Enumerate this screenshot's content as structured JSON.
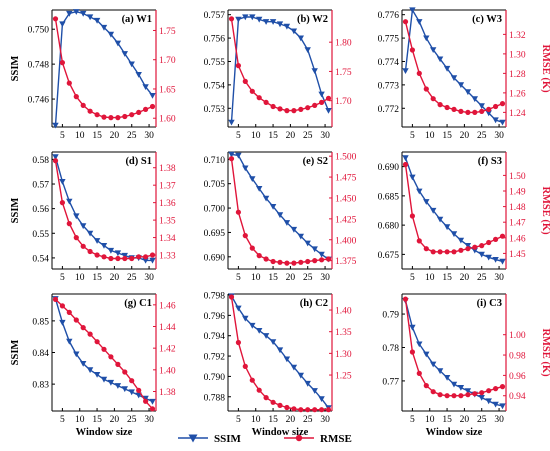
{
  "colors": {
    "ssim": "#1f4fa8",
    "rmse": "#e0153a",
    "axis": "#000000"
  },
  "legend": {
    "placement": "bottom-center",
    "ssim_label": "SSIM",
    "rmse_label": "RMSE"
  },
  "chart_data": [
    {
      "type": "line",
      "title": "(a) W1",
      "xlabel": "",
      "ylabel_left": "SSIM",
      "ylabel_right": "",
      "x": [
        3,
        5,
        7,
        9,
        11,
        13,
        15,
        17,
        19,
        21,
        23,
        25,
        27,
        29,
        31
      ],
      "xticks": [
        "5",
        "10",
        "15",
        "20",
        "25",
        "30"
      ],
      "xlim": [
        2,
        32
      ],
      "ylim_left": [
        0.7444,
        0.7511
      ],
      "yticks_left": [
        "0.746",
        "0.748",
        "0.750"
      ],
      "ylim_right": [
        1.585,
        1.785
      ],
      "yticks_right": [
        "1.60",
        "1.65",
        "1.70",
        "1.75"
      ],
      "series": [
        {
          "name": "SSIM",
          "axis": "left",
          "values": [
            0.7445,
            0.7503,
            0.7509,
            0.751,
            0.7509,
            0.7507,
            0.7505,
            0.7501,
            0.7497,
            0.7492,
            0.7486,
            0.748,
            0.7474,
            0.7467,
            0.7462
          ]
        },
        {
          "name": "RMSE",
          "axis": "right",
          "values": [
            1.77,
            1.695,
            1.66,
            1.637,
            1.622,
            1.612,
            1.606,
            1.602,
            1.601,
            1.601,
            1.603,
            1.606,
            1.61,
            1.615,
            1.62
          ]
        }
      ]
    },
    {
      "type": "line",
      "title": "(b) W2",
      "xlabel": "",
      "ylabel_left": "",
      "ylabel_right": "",
      "x": [
        3,
        5,
        7,
        9,
        11,
        13,
        15,
        17,
        19,
        21,
        23,
        25,
        27,
        29,
        31
      ],
      "xticks": [
        "5",
        "10",
        "15",
        "20",
        "25",
        "30"
      ],
      "xlim": [
        2,
        32
      ],
      "ylim_left": [
        0.7522,
        0.7572
      ],
      "yticks_left": [
        "0.753",
        "0.754",
        "0.755",
        "0.756",
        "0.757"
      ],
      "ylim_right": [
        1.655,
        1.855
      ],
      "yticks_right": [
        "1.70",
        "1.75",
        "1.80"
      ],
      "series": [
        {
          "name": "SSIM",
          "axis": "left",
          "values": [
            0.7524,
            0.7568,
            0.7569,
            0.7569,
            0.7568,
            0.7567,
            0.7567,
            0.7566,
            0.7565,
            0.7563,
            0.756,
            0.7555,
            0.7546,
            0.7536,
            0.7529
          ]
        },
        {
          "name": "RMSE",
          "axis": "right",
          "values": [
            1.84,
            1.76,
            1.733,
            1.716,
            1.705,
            1.697,
            1.69,
            1.686,
            1.683,
            1.683,
            1.685,
            1.688,
            1.692,
            1.697,
            1.704
          ]
        }
      ]
    },
    {
      "type": "line",
      "title": "(c) W3",
      "xlabel": "",
      "ylabel_left": "",
      "ylabel_right": "RMSE (K)",
      "x": [
        3,
        5,
        7,
        9,
        11,
        13,
        15,
        17,
        19,
        21,
        23,
        25,
        27,
        29,
        31
      ],
      "xticks": [
        "5",
        "10",
        "15",
        "20",
        "25",
        "30"
      ],
      "xlim": [
        2,
        32
      ],
      "ylim_left": [
        0.7712,
        0.7762
      ],
      "yticks_left": [
        "0.772",
        "0.773",
        "0.774",
        "0.775",
        "0.776"
      ],
      "ylim_right": [
        1.225,
        1.345
      ],
      "yticks_right": [
        "1.24",
        "1.26",
        "1.28",
        "1.30",
        "1.32"
      ],
      "series": [
        {
          "name": "SSIM",
          "axis": "left",
          "values": [
            0.7736,
            0.7762,
            0.7757,
            0.775,
            0.7745,
            0.7741,
            0.7737,
            0.7733,
            0.773,
            0.7727,
            0.7724,
            0.7721,
            0.7718,
            0.7715,
            0.7714
          ]
        },
        {
          "name": "RMSE",
          "axis": "right",
          "values": [
            1.333,
            1.304,
            1.28,
            1.264,
            1.254,
            1.248,
            1.245,
            1.243,
            1.241,
            1.24,
            1.24,
            1.241,
            1.243,
            1.246,
            1.249
          ]
        }
      ]
    },
    {
      "type": "line",
      "title": "(d) S1",
      "xlabel": "",
      "ylabel_left": "SSIM",
      "ylabel_right": "",
      "x": [
        3,
        5,
        7,
        9,
        11,
        13,
        15,
        17,
        19,
        21,
        23,
        25,
        27,
        29,
        31
      ],
      "xticks": [
        "5",
        "10",
        "15",
        "20",
        "25",
        "30"
      ],
      "xlim": [
        2,
        32
      ],
      "ylim_left": [
        0.5355,
        0.583
      ],
      "yticks_left": [
        "0.54",
        "0.55",
        "0.56",
        "0.57",
        "0.58"
      ],
      "ylim_right": [
        1.322,
        1.389
      ],
      "yticks_right": [
        "1.33",
        "1.34",
        "1.35",
        "1.36",
        "1.37",
        "1.38"
      ],
      "series": [
        {
          "name": "SSIM",
          "axis": "left",
          "values": [
            0.581,
            0.571,
            0.563,
            0.557,
            0.553,
            0.55,
            0.547,
            0.545,
            0.543,
            0.542,
            0.541,
            0.54,
            0.54,
            0.539,
            0.539
          ]
        },
        {
          "name": "RMSE",
          "axis": "right",
          "values": [
            1.384,
            1.36,
            1.348,
            1.34,
            1.335,
            1.332,
            1.33,
            1.329,
            1.328,
            1.328,
            1.328,
            1.328,
            1.329,
            1.329,
            1.33
          ]
        }
      ]
    },
    {
      "type": "line",
      "title": "(e) S2",
      "xlabel": "",
      "ylabel_left": "",
      "ylabel_right": "",
      "x": [
        3,
        5,
        7,
        9,
        11,
        13,
        15,
        17,
        19,
        21,
        23,
        25,
        27,
        29,
        31
      ],
      "xticks": [
        "5",
        "10",
        "15",
        "20",
        "25",
        "30"
      ],
      "xlim": [
        2,
        32
      ],
      "ylim_left": [
        0.6875,
        0.7115
      ],
      "yticks_left": [
        "0.690",
        "0.695",
        "0.700",
        "0.705",
        "0.710"
      ],
      "ylim_right": [
        1.365,
        1.505
      ],
      "yticks_right": [
        "1.375",
        "1.400",
        "1.425",
        "1.450",
        "1.475",
        "1.500"
      ],
      "series": [
        {
          "name": "SSIM",
          "axis": "left",
          "values": [
            0.711,
            0.7108,
            0.7082,
            0.706,
            0.704,
            0.702,
            0.7003,
            0.6986,
            0.697,
            0.6956,
            0.6942,
            0.6928,
            0.6916,
            0.6905,
            0.6895
          ]
        },
        {
          "name": "RMSE",
          "axis": "right",
          "values": [
            1.497,
            1.433,
            1.405,
            1.39,
            1.381,
            1.377,
            1.374,
            1.373,
            1.372,
            1.372,
            1.373,
            1.374,
            1.375,
            1.376,
            1.377
          ]
        }
      ]
    },
    {
      "type": "line",
      "title": "(f) S3",
      "xlabel": "",
      "ylabel_left": "",
      "ylabel_right": "RMSE (K)",
      "x": [
        3,
        5,
        7,
        9,
        11,
        13,
        15,
        17,
        19,
        21,
        23,
        25,
        27,
        29,
        31
      ],
      "xticks": [
        "5",
        "10",
        "15",
        "20",
        "25",
        "30"
      ],
      "xlim": [
        2,
        32
      ],
      "ylim_left": [
        0.6725,
        0.6925
      ],
      "yticks_left": [
        "0.675",
        "0.680",
        "0.685",
        "0.690"
      ],
      "ylim_right": [
        1.44,
        1.515
      ],
      "yticks_right": [
        "1.45",
        "1.46",
        "1.47",
        "1.48",
        "1.49",
        "1.50"
      ],
      "series": [
        {
          "name": "SSIM",
          "axis": "left",
          "values": [
            0.6915,
            0.6882,
            0.6858,
            0.684,
            0.6825,
            0.681,
            0.6797,
            0.6785,
            0.6774,
            0.6765,
            0.6757,
            0.675,
            0.6745,
            0.6741,
            0.6738
          ]
        },
        {
          "name": "RMSE",
          "axis": "right",
          "values": [
            1.507,
            1.474,
            1.458,
            1.453,
            1.451,
            1.451,
            1.451,
            1.451,
            1.452,
            1.453,
            1.454,
            1.455,
            1.457,
            1.459,
            1.461
          ]
        }
      ]
    },
    {
      "type": "line",
      "title": "(g) C1",
      "xlabel": "Window size",
      "ylabel_left": "SSIM",
      "ylabel_right": "",
      "x": [
        3,
        5,
        7,
        9,
        11,
        13,
        15,
        17,
        19,
        21,
        23,
        25,
        27,
        29,
        31
      ],
      "xticks": [
        "5",
        "10",
        "15",
        "20",
        "25",
        "30"
      ],
      "xlim": [
        2,
        32
      ],
      "ylim_left": [
        0.8215,
        0.8585
      ],
      "yticks_left": [
        "0.83",
        "0.84",
        "0.85"
      ],
      "ylim_right": [
        1.362,
        1.47
      ],
      "yticks_right": [
        "1.38",
        "1.40",
        "1.42",
        "1.44",
        "1.46"
      ],
      "series": [
        {
          "name": "SSIM",
          "axis": "left",
          "values": [
            0.857,
            0.8495,
            0.8435,
            0.8395,
            0.8365,
            0.8345,
            0.833,
            0.8315,
            0.8305,
            0.8295,
            0.8285,
            0.8275,
            0.8265,
            0.8255,
            0.8245
          ]
        },
        {
          "name": "RMSE",
          "axis": "right",
          "values": [
            1.465,
            1.459,
            1.453,
            1.446,
            1.439,
            1.433,
            1.426,
            1.419,
            1.412,
            1.405,
            1.398,
            1.39,
            1.381,
            1.371,
            1.364
          ]
        }
      ]
    },
    {
      "type": "line",
      "title": "(h) C2",
      "xlabel": "Window size",
      "ylabel_left": "",
      "ylabel_right": "",
      "x": [
        3,
        5,
        7,
        9,
        11,
        13,
        15,
        17,
        19,
        21,
        23,
        25,
        27,
        29,
        31
      ],
      "xticks": [
        "5",
        "10",
        "15",
        "20",
        "25",
        "30"
      ],
      "xlim": [
        2,
        32
      ],
      "ylim_left": [
        0.7866,
        0.7981
      ],
      "yticks_left": [
        "0.788",
        "0.790",
        "0.792",
        "0.794",
        "0.796",
        "0.798"
      ],
      "ylim_right": [
        1.167,
        1.437
      ],
      "yticks_right": [
        "1.25",
        "1.30",
        "1.35",
        "1.40"
      ],
      "series": [
        {
          "name": "SSIM",
          "axis": "left",
          "values": [
            0.7979,
            0.7967,
            0.7957,
            0.795,
            0.7945,
            0.794,
            0.7934,
            0.7926,
            0.7917,
            0.7909,
            0.7901,
            0.7893,
            0.7886,
            0.7878,
            0.7869
          ]
        },
        {
          "name": "RMSE",
          "axis": "right",
          "values": [
            1.43,
            1.325,
            1.27,
            1.238,
            1.215,
            1.198,
            1.187,
            1.18,
            1.175,
            1.172,
            1.17,
            1.17,
            1.17,
            1.17,
            1.17
          ]
        }
      ]
    },
    {
      "type": "line",
      "title": "(i) C3",
      "xlabel": "Window size",
      "ylabel_left": "",
      "ylabel_right": "RMSE (K)",
      "x": [
        3,
        5,
        7,
        9,
        11,
        13,
        15,
        17,
        19,
        21,
        23,
        25,
        27,
        29,
        31
      ],
      "xticks": [
        "5",
        "10",
        "15",
        "20",
        "25",
        "30"
      ],
      "xlim": [
        2,
        32
      ],
      "ylim_left": [
        0.761,
        0.796
      ],
      "yticks_left": [
        "0.77",
        "0.78",
        "0.79"
      ],
      "ylim_right": [
        0.925,
        1.04
      ],
      "yticks_right": [
        "0.94",
        "0.96",
        "0.98",
        "1.00"
      ],
      "series": [
        {
          "name": "SSIM",
          "axis": "left",
          "values": [
            0.794,
            0.786,
            0.781,
            0.778,
            0.775,
            0.773,
            0.771,
            0.769,
            0.768,
            0.767,
            0.766,
            0.765,
            0.764,
            0.763,
            0.7625
          ]
        },
        {
          "name": "RMSE",
          "axis": "right",
          "values": [
            1.035,
            0.983,
            0.962,
            0.95,
            0.944,
            0.941,
            0.94,
            0.94,
            0.94,
            0.941,
            0.942,
            0.943,
            0.945,
            0.947,
            0.949
          ]
        }
      ]
    }
  ]
}
